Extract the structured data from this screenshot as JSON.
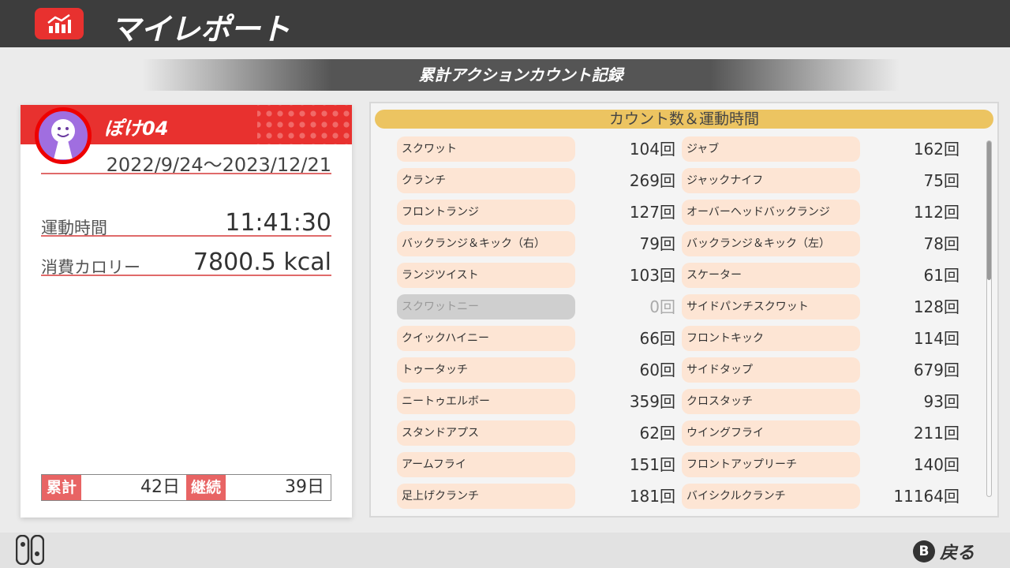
{
  "header": {
    "title": "マイレポート",
    "icon": "chart-icon"
  },
  "section_title": "累計アクションカウント記録",
  "profile": {
    "name": "ぽけ04",
    "period": "2022/9/24〜2023/12/21",
    "exercise_time_label": "運動時間",
    "exercise_time": "11:41:30",
    "calories_label": "消費カロリー",
    "calories": "7800.5 kcal",
    "total_label": "累計",
    "total_days": "42日",
    "streak_label": "継続",
    "streak_days": "39日"
  },
  "panel": {
    "header": "カウント数＆運動時間",
    "scroll_position": 0,
    "left": [
      {
        "name": "スクワット",
        "count": "104回"
      },
      {
        "name": "クランチ",
        "count": "269回"
      },
      {
        "name": "フロントランジ",
        "count": "127回"
      },
      {
        "name": "バックランジ＆キック（右）",
        "count": "79回"
      },
      {
        "name": "ランジツイスト",
        "count": "103回"
      },
      {
        "name": "スクワットニー",
        "count": "0回",
        "disabled": true
      },
      {
        "name": "クイックハイニー",
        "count": "66回"
      },
      {
        "name": "トゥータッチ",
        "count": "60回"
      },
      {
        "name": "ニートゥエルボー",
        "count": "359回"
      },
      {
        "name": "スタンドアプス",
        "count": "62回"
      },
      {
        "name": "アームフライ",
        "count": "151回"
      },
      {
        "name": "足上げクランチ",
        "count": "181回"
      }
    ],
    "right": [
      {
        "name": "ジャブ",
        "count": "162回"
      },
      {
        "name": "ジャックナイフ",
        "count": "75回"
      },
      {
        "name": "オーバーヘッドバックランジ",
        "count": "112回"
      },
      {
        "name": "バックランジ＆キック（左）",
        "count": "78回"
      },
      {
        "name": "スケーター",
        "count": "61回"
      },
      {
        "name": "サイドパンチスクワット",
        "count": "128回"
      },
      {
        "name": "フロントキック",
        "count": "114回"
      },
      {
        "name": "サイドタップ",
        "count": "679回"
      },
      {
        "name": "クロスタッチ",
        "count": "93回"
      },
      {
        "name": "ウイングフライ",
        "count": "211回"
      },
      {
        "name": "フロントアップリーチ",
        "count": "140回"
      },
      {
        "name": "バイシクルクランチ",
        "count": "11164回"
      }
    ]
  },
  "footer": {
    "back_button": "B",
    "back_label": "戻る",
    "controller_icon": "joycon-icon"
  },
  "colors": {
    "accent": "#e8312f",
    "header_bg": "#3d3d3d",
    "panel_head": "#ecc461",
    "pill": "#fde5d4"
  }
}
